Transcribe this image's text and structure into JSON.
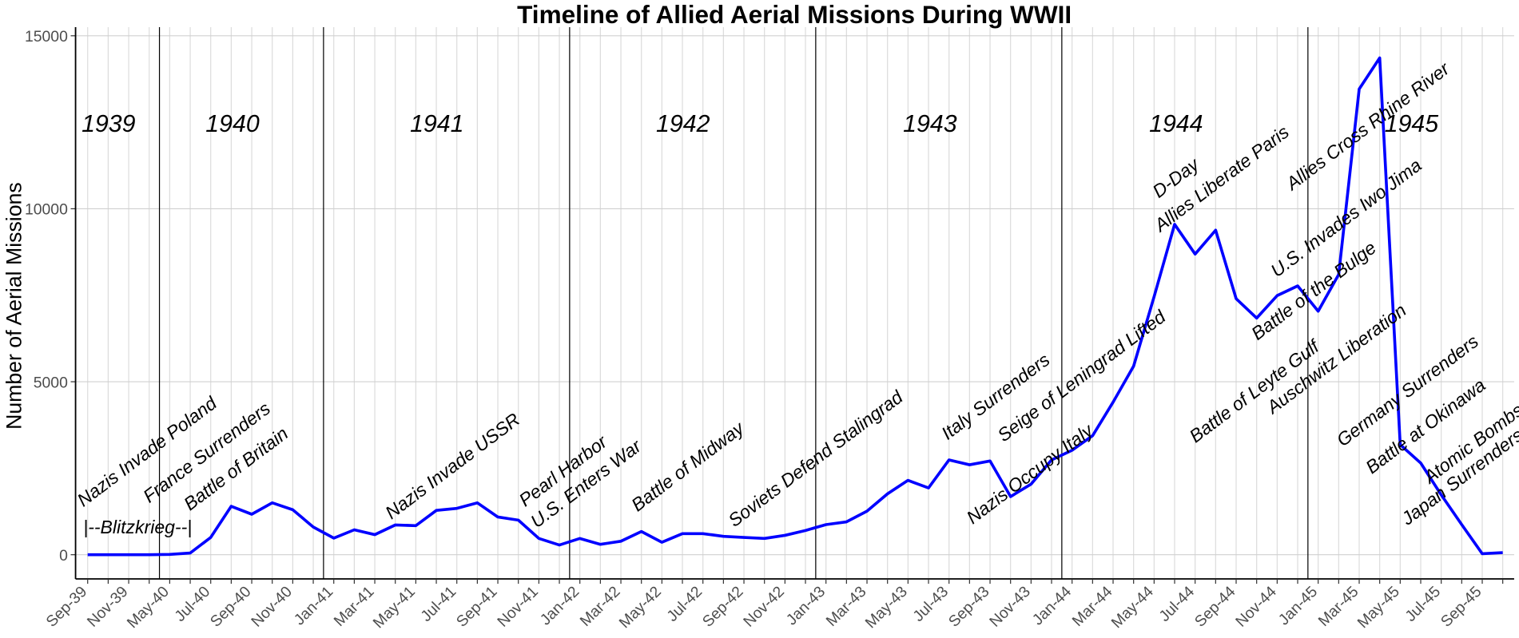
{
  "chart_data": {
    "type": "line",
    "title": "Timeline of Allied Aerial Missions During WWII",
    "y_label": "Number of Aerial Missions",
    "categories": [
      "Sep-39",
      null,
      "Nov-39",
      null,
      "May-40",
      null,
      "Jul-40",
      null,
      "Sep-40",
      null,
      "Nov-40",
      null,
      "Jan-41",
      null,
      "Mar-41",
      null,
      "May-41",
      null,
      "Jul-41",
      null,
      "Sep-41",
      null,
      "Nov-41",
      null,
      "Jan-42",
      null,
      "Mar-42",
      null,
      "May-42",
      null,
      "Jul-42",
      null,
      "Sep-42",
      null,
      "Nov-42",
      null,
      "Jan-43",
      null,
      "Mar-43",
      null,
      "May-43",
      null,
      "Jul-43",
      null,
      "Sep-43",
      null,
      "Nov-43",
      null,
      "Jan-44",
      null,
      "Mar-44",
      null,
      "May-44",
      null,
      "Jul-44",
      null,
      "Sep-44",
      null,
      "Nov-44",
      null,
      "Jan-45",
      null,
      "Mar-45",
      null,
      "May-45",
      null,
      "Jul-45",
      null,
      "Sep-45",
      null
    ],
    "series": [
      {
        "name": "Aerial Missions",
        "color": "#0000ff",
        "values": [
          0,
          0,
          0,
          0,
          10,
          50,
          500,
          1400,
          1170,
          1500,
          1300,
          800,
          480,
          720,
          580,
          860,
          840,
          1280,
          1340,
          1500,
          1090,
          1000,
          470,
          280,
          470,
          300,
          390,
          670,
          360,
          610,
          610,
          530,
          500,
          470,
          560,
          700,
          870,
          950,
          1260,
          1760,
          2150,
          1930,
          2740,
          2600,
          2710,
          1680,
          2040,
          2740,
          3020,
          3440,
          4410,
          5450,
          7460,
          9550,
          8690,
          9380,
          7400,
          6840,
          7490,
          7770,
          7040,
          8100,
          13460,
          14360,
          3180,
          2650,
          1730,
          870,
          30,
          60
        ]
      }
    ],
    "ylim": [
      -700,
      15250
    ],
    "yticks": [
      0,
      5000,
      10000,
      15000
    ],
    "grid": true,
    "year_labels": [
      "1939",
      "1940",
      "1941",
      "1942",
      "1943",
      "1944",
      "1945"
    ],
    "period_label": "|--Blitzkrieg--|",
    "annotations": [
      "Nazis Invade Poland",
      "France Surrenders",
      "Battle of Britain",
      "Nazis Invade USSR",
      "Pearl Harbor",
      "U.S. Enters War",
      "Battle of Midway",
      "Soviets Defend Stalingrad",
      "Italy Surrenders",
      "Seige of Leningrad Lifted",
      "Nazis Occupy Italy",
      "D-Day",
      "Allies Liberate Paris",
      "Battle of Leyte Gulf",
      "Battle of the Bulge",
      "U.S. Invades Iwo Jima",
      "Auschwitz Liberation",
      "Allies Cross Rhine River",
      "Germany Surrenders",
      "Battle at Okinawa",
      "Atomic Bombs",
      "Japan Surrenders"
    ]
  }
}
